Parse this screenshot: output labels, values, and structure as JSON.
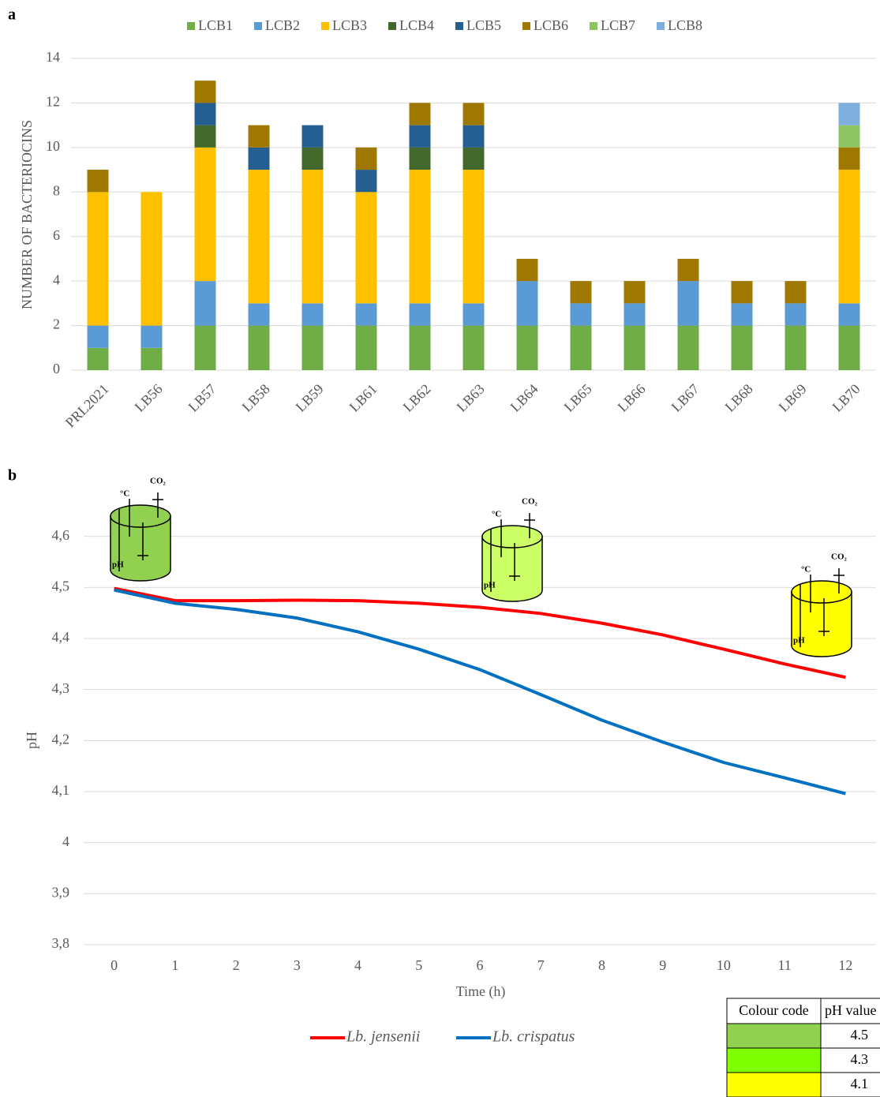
{
  "chart_data": [
    {
      "type": "stacked-bar",
      "panel": "a",
      "ylabel": "NUMBER OF BACTERIOCINS",
      "categories": [
        "PRL2021",
        "LB56",
        "LB57",
        "LB58",
        "LB59",
        "LB61",
        "LB62",
        "LB63",
        "LB64",
        "LB65",
        "LB66",
        "LB67",
        "LB68",
        "LB69",
        "LB70"
      ],
      "series": [
        {
          "name": "LCB1",
          "color": "#70ad47",
          "values": [
            1,
            1,
            2,
            2,
            2,
            2,
            2,
            2,
            2,
            2,
            2,
            2,
            2,
            2,
            2
          ]
        },
        {
          "name": "LCB2",
          "color": "#5b9bd5",
          "values": [
            1,
            1,
            2,
            1,
            1,
            1,
            1,
            1,
            2,
            1,
            1,
            2,
            1,
            1,
            1
          ]
        },
        {
          "name": "LCB3",
          "color": "#ffc000",
          "values": [
            6,
            6,
            6,
            6,
            6,
            5,
            6,
            6,
            0,
            0,
            0,
            0,
            0,
            0,
            6
          ]
        },
        {
          "name": "LCB4",
          "color": "#43682b",
          "values": [
            0,
            0,
            1,
            0,
            1,
            0,
            1,
            1,
            0,
            0,
            0,
            0,
            0,
            0,
            0
          ]
        },
        {
          "name": "LCB5",
          "color": "#255e91",
          "values": [
            0,
            0,
            1,
            1,
            1,
            1,
            1,
            1,
            0,
            0,
            0,
            0,
            0,
            0,
            0
          ]
        },
        {
          "name": "LCB6",
          "color": "#9e7800",
          "values": [
            1,
            0,
            1,
            1,
            0,
            1,
            1,
            1,
            1,
            1,
            1,
            1,
            1,
            1,
            1
          ]
        },
        {
          "name": "LCB7",
          "color": "#8fc462",
          "values": [
            0,
            0,
            0,
            0,
            0,
            0,
            0,
            0,
            0,
            0,
            0,
            0,
            0,
            0,
            1
          ]
        },
        {
          "name": "LCB8",
          "color": "#7eaedd",
          "values": [
            0,
            0,
            0,
            0,
            0,
            0,
            0,
            0,
            0,
            0,
            0,
            0,
            0,
            0,
            1
          ]
        }
      ],
      "ylim": [
        0,
        14
      ],
      "yticks": [
        0,
        2,
        4,
        6,
        8,
        10,
        12,
        14
      ],
      "grid": true,
      "legend": "top"
    },
    {
      "type": "line",
      "panel": "b",
      "xlabel": "Time (h)",
      "ylabel": "pH",
      "x": [
        0,
        1,
        2,
        3,
        4,
        5,
        6,
        7,
        8,
        9,
        10,
        11,
        12
      ],
      "series": [
        {
          "name": "Lb. jensenii",
          "color": "#ff0000",
          "values": [
            4.498,
            4.474,
            4.474,
            4.475,
            4.474,
            4.469,
            4.461,
            4.449,
            4.43,
            4.407,
            4.379,
            4.35,
            4.324
          ]
        },
        {
          "name": "Lb. crispatus",
          "color": "#0070c0",
          "values": [
            4.495,
            4.469,
            4.457,
            4.44,
            4.413,
            4.379,
            4.339,
            4.29,
            4.24,
            4.197,
            4.157,
            4.127,
            4.096
          ]
        }
      ],
      "xlim": [
        -0.5,
        12.5
      ],
      "xticks": [
        0,
        1,
        2,
        3,
        4,
        5,
        6,
        7,
        8,
        9,
        10,
        11,
        12
      ],
      "ylim": [
        3.8,
        4.7
      ],
      "yticks": [
        {
          "value": 3.8,
          "label": "3,8"
        },
        {
          "value": 3.9,
          "label": "3,9"
        },
        4,
        {
          "value": 4.1,
          "label": "4,1"
        },
        {
          "value": 4.2,
          "label": "4,2"
        },
        {
          "value": 4.3,
          "label": "4,3"
        },
        {
          "value": 4.4,
          "label": "4,4"
        },
        {
          "value": 4.5,
          "label": "4,5"
        },
        {
          "value": 4.6,
          "label": "4,6"
        }
      ],
      "grid": true,
      "legend": "bottom",
      "icon_labels": {
        "temp": "°C",
        "co2": "CO₂",
        "ph": "pH"
      },
      "icon_colors": [
        "#92d050",
        "#ccff66",
        "#ffff00"
      ],
      "colour_table": {
        "header": [
          "Colour code",
          "pH value"
        ],
        "rows": [
          {
            "color": "#92d050",
            "value": 4.5
          },
          {
            "color": "#80ff00",
            "value": 4.3
          },
          {
            "color": "#ffff00",
            "value": 4.1
          }
        ]
      }
    }
  ]
}
